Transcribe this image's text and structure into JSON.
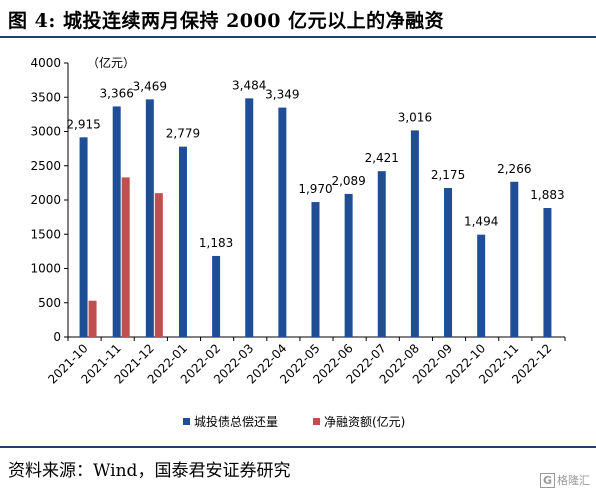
{
  "title": "图 4:  城投连续两月保持 2000 亿元以上的净融资",
  "source": "资料来源：Wind，国泰君安证券研究",
  "watermark": {
    "box": "G",
    "text": "格隆汇"
  },
  "chart_data": {
    "type": "bar",
    "unit_label": "（亿元）",
    "categories": [
      "2021-10",
      "2021-11",
      "2021-12",
      "2022-01",
      "2022-02",
      "2022-03",
      "2022-04",
      "2022-05",
      "2022-06",
      "2022-07",
      "2022-08",
      "2022-09",
      "2022-10",
      "2022-11",
      "2022-12"
    ],
    "series": [
      {
        "name": "城投债总偿还量",
        "color": "#1f4e96",
        "values": [
          2915,
          3366,
          3469,
          2779,
          1183,
          3484,
          3349,
          1970,
          2089,
          2421,
          3016,
          2175,
          1494,
          2266,
          1883
        ],
        "labels": [
          "2,915",
          "3,366",
          "3,469",
          "2,779",
          "1,183",
          "3,484",
          "3,349",
          "1,970",
          "2,089",
          "2,421",
          "3,016",
          "2,175",
          "1,494",
          "2,266",
          "1,883"
        ]
      },
      {
        "name": "净融资额(亿元)",
        "color": "#c0504d",
        "values": [
          530,
          2330,
          2100,
          null,
          null,
          null,
          null,
          null,
          null,
          null,
          null,
          null,
          null,
          null,
          null
        ]
      }
    ],
    "ylim": [
      0,
      4000
    ],
    "yticks": [
      0,
      500,
      1000,
      1500,
      2000,
      2500,
      3000,
      3500,
      4000
    ],
    "ytick_labels": [
      "0",
      "500",
      "1000",
      "1500",
      "2000",
      "2500",
      "3000",
      "3500",
      "4000"
    ],
    "legend_position": "bottom",
    "grid": false
  }
}
